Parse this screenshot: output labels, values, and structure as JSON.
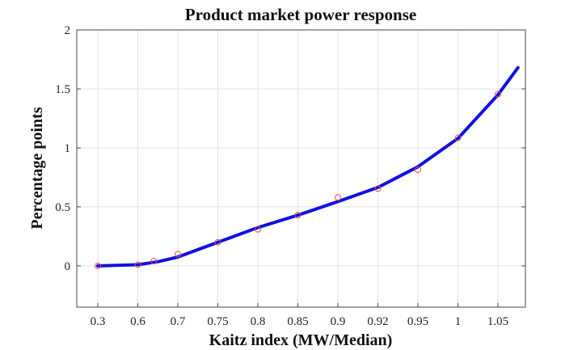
{
  "chart_data": {
    "type": "line",
    "title": "Product market power response",
    "xlabel": "Kaitz index (MW/Median)",
    "ylabel": "Percentage points",
    "x_ticks": [
      "0.3",
      "0.6",
      "0.7",
      "0.75",
      "0.8",
      "0.85",
      "0.9",
      "0.92",
      "0.95",
      "1",
      "1.05"
    ],
    "ylim": [
      -0.35,
      2.0
    ],
    "y_ticks": [
      0,
      0.5,
      1,
      1.5,
      2
    ],
    "y_tick_labels": [
      "0",
      "0.5",
      "1",
      "1.5",
      "2"
    ],
    "grid": true,
    "series": [
      {
        "kind": "line",
        "color": "#1010e0",
        "points": [
          {
            "x_pos": 0.0,
            "y": 0.0
          },
          {
            "x_pos": 1.0,
            "y": 0.01
          },
          {
            "x_pos": 1.5,
            "y": 0.035
          },
          {
            "x_pos": 2.0,
            "y": 0.075
          },
          {
            "x_pos": 3.0,
            "y": 0.2
          },
          {
            "x_pos": 4.0,
            "y": 0.325
          },
          {
            "x_pos": 5.0,
            "y": 0.43
          },
          {
            "x_pos": 6.0,
            "y": 0.545
          },
          {
            "x_pos": 7.0,
            "y": 0.665
          },
          {
            "x_pos": 8.0,
            "y": 0.84
          },
          {
            "x_pos": 9.0,
            "y": 1.08
          },
          {
            "x_pos": 10.0,
            "y": 1.45
          },
          {
            "x_pos": 10.5,
            "y": 1.68
          }
        ]
      },
      {
        "kind": "scatter",
        "marker": "open-circle",
        "color": "#e05050",
        "points": [
          {
            "x_pos": 0.0,
            "y": 0.0
          },
          {
            "x_pos": 1.0,
            "y": 0.01
          },
          {
            "x_pos": 1.4,
            "y": 0.04
          },
          {
            "x_pos": 2.0,
            "y": 0.1
          },
          {
            "x_pos": 3.0,
            "y": 0.2
          },
          {
            "x_pos": 4.0,
            "y": 0.31
          },
          {
            "x_pos": 5.0,
            "y": 0.43
          },
          {
            "x_pos": 6.0,
            "y": 0.58
          },
          {
            "x_pos": 7.0,
            "y": 0.655
          },
          {
            "x_pos": 8.0,
            "y": 0.815
          },
          {
            "x_pos": 9.0,
            "y": 1.085
          },
          {
            "x_pos": 10.0,
            "y": 1.455
          }
        ]
      }
    ]
  }
}
